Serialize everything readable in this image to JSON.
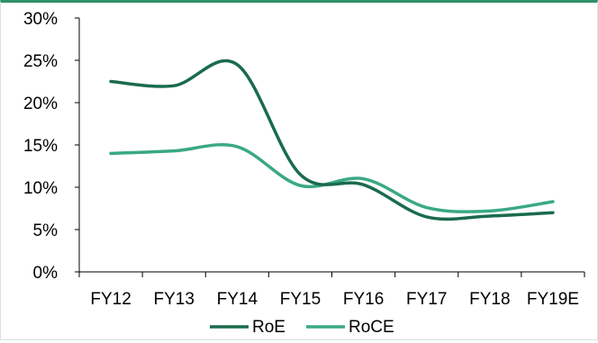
{
  "chart_data": {
    "type": "line",
    "categories": [
      "FY12",
      "FY13",
      "FY14",
      "FY15",
      "FY16",
      "FY17",
      "FY18",
      "FY19E"
    ],
    "series": [
      {
        "name": "RoE",
        "values": [
          22.5,
          22.0,
          24.5,
          11.5,
          10.3,
          6.5,
          6.6,
          7.0
        ],
        "color": "#1a6b4c"
      },
      {
        "name": "RoCE",
        "values": [
          14.0,
          14.3,
          14.8,
          10.2,
          11.0,
          7.6,
          7.2,
          8.3
        ],
        "color": "#3aa886"
      }
    ],
    "y_ticks": [
      "0%",
      "5%",
      "10%",
      "15%",
      "20%",
      "25%",
      "30%"
    ],
    "ylim": [
      0,
      30
    ],
    "grid": false,
    "legend": "bottom-center"
  }
}
